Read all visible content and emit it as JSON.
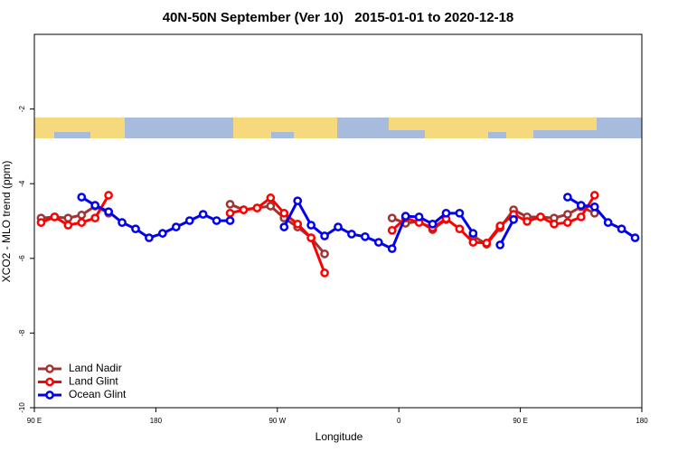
{
  "chart_data": {
    "type": "line",
    "title": "40N-50N September (Ver 10)   2015-01-01 to 2020-12-18",
    "x_label": "Longitude",
    "y_label": "XCO2 - MLO trend (ppm)",
    "x": [
      95,
      105,
      115,
      125,
      135,
      145,
      155,
      165,
      175,
      185,
      195,
      205,
      215,
      225,
      235,
      245,
      255,
      265,
      275,
      285,
      295,
      305,
      315,
      325,
      335,
      345,
      355,
      365,
      375,
      385,
      395,
      405,
      415,
      425,
      435,
      445,
      455,
      465,
      475,
      485,
      495,
      505,
      515,
      525,
      535
    ],
    "series": [
      {
        "name": "Land Nadir",
        "color": "#9e3535",
        "values": [
          -4.92,
          -4.89,
          -4.92,
          -4.84,
          -4.6,
          -4.79,
          null,
          null,
          null,
          null,
          null,
          null,
          null,
          null,
          -4.55,
          -4.7,
          -4.65,
          -4.6,
          -4.92,
          -5.16,
          -5.45,
          -5.88,
          null,
          null,
          null,
          null,
          -4.92,
          -5.06,
          -5.01,
          -5.23,
          -4.96,
          null,
          -5.4,
          -5.62,
          -5.18,
          -4.7,
          -4.89,
          -4.89,
          -4.92,
          -4.82,
          -4.62,
          -4.79,
          null,
          null,
          null
        ]
      },
      {
        "name": "Land Glint",
        "color": "#ff0000",
        "values": [
          -5.04,
          -4.89,
          -5.11,
          -5.04,
          -4.92,
          -4.31,
          null,
          null,
          null,
          null,
          null,
          null,
          null,
          null,
          -4.79,
          -4.7,
          -4.65,
          -4.38,
          -4.79,
          -5.08,
          -5.45,
          -6.39,
          null,
          null,
          null,
          null,
          -5.25,
          -4.92,
          -5.04,
          -5.18,
          -4.94,
          -5.21,
          -5.57,
          -5.59,
          -5.13,
          -4.82,
          -5.01,
          -4.89,
          -5.08,
          -5.04,
          -4.89,
          -4.31,
          null,
          null,
          null
        ]
      },
      {
        "name": "Ocean Glint",
        "color": "#0000ee",
        "values": [
          null,
          null,
          null,
          -4.36,
          -4.58,
          -4.75,
          -5.04,
          -5.21,
          -5.45,
          -5.33,
          -5.16,
          -4.99,
          -4.82,
          -4.99,
          -4.99,
          null,
          null,
          null,
          -5.16,
          -4.46,
          -5.11,
          -5.4,
          -5.16,
          -5.35,
          -5.42,
          -5.57,
          -5.74,
          -4.87,
          -4.89,
          -5.08,
          -4.79,
          -4.79,
          -5.33,
          null,
          -5.64,
          -4.96,
          null,
          null,
          null,
          -4.36,
          -4.58,
          -4.62,
          -5.04,
          -5.21,
          -5.45
        ]
      }
    ],
    "xlim": [
      90,
      540
    ],
    "xticks": [
      {
        "value": 90,
        "label": "90 E"
      },
      180,
      {
        "value": 270,
        "label": "90 W"
      },
      {
        "value": 360,
        "label": "0"
      },
      {
        "value": 450,
        "label": "90 E"
      },
      {
        "value": 540,
        "label": "180"
      }
    ],
    "ylim": [
      -10,
      0
    ],
    "yticks": [
      -2,
      -4,
      -6,
      -8,
      -10
    ],
    "legend": "bottom-left"
  }
}
